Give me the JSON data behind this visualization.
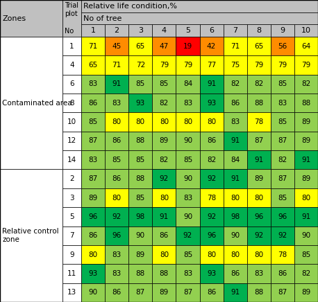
{
  "zones": [
    "Contaminated area",
    "Relative control\nzone"
  ],
  "zone_rows": [
    7,
    7
  ],
  "trial_plots": [
    1,
    4,
    6,
    8,
    10,
    12,
    14,
    2,
    3,
    5,
    7,
    9,
    11,
    13
  ],
  "values": [
    [
      71,
      45,
      65,
      47,
      19,
      42,
      71,
      65,
      56,
      64
    ],
    [
      65,
      71,
      72,
      79,
      79,
      77,
      75,
      79,
      79,
      79
    ],
    [
      83,
      91,
      85,
      85,
      84,
      91,
      82,
      82,
      85,
      82
    ],
    [
      86,
      83,
      93,
      82,
      83,
      93,
      86,
      88,
      83,
      88
    ],
    [
      85,
      80,
      80,
      80,
      80,
      80,
      83,
      78,
      85,
      89
    ],
    [
      87,
      86,
      88,
      89,
      90,
      86,
      91,
      87,
      87,
      89
    ],
    [
      83,
      85,
      85,
      82,
      85,
      82,
      84,
      91,
      82,
      91
    ],
    [
      87,
      86,
      88,
      92,
      90,
      92,
      91,
      89,
      87,
      89
    ],
    [
      89,
      80,
      85,
      80,
      83,
      78,
      80,
      80,
      85,
      80
    ],
    [
      96,
      92,
      98,
      91,
      90,
      92,
      98,
      96,
      96,
      91
    ],
    [
      86,
      96,
      90,
      86,
      92,
      96,
      90,
      92,
      92,
      90
    ],
    [
      80,
      83,
      89,
      80,
      85,
      80,
      80,
      80,
      78,
      85
    ],
    [
      93,
      83,
      88,
      88,
      83,
      93,
      86,
      83,
      86,
      82
    ],
    [
      90,
      86,
      87,
      89,
      87,
      86,
      91,
      88,
      87,
      89
    ]
  ],
  "tree_cols": [
    1,
    2,
    3,
    4,
    5,
    6,
    7,
    8,
    9,
    10
  ],
  "header_bg": "#c0c0c0",
  "zone_bg": "#ffffff",
  "thresholds": [
    {
      "max": 40,
      "color": "#ff0000"
    },
    {
      "max": 60,
      "color": "#ff8c00"
    },
    {
      "max": 81,
      "color": "#ffff00"
    },
    {
      "max": 91,
      "color": "#92d050"
    },
    {
      "max": 200,
      "color": "#00b050"
    }
  ],
  "fig_w": 4.58,
  "fig_h": 4.36,
  "dpi": 100
}
